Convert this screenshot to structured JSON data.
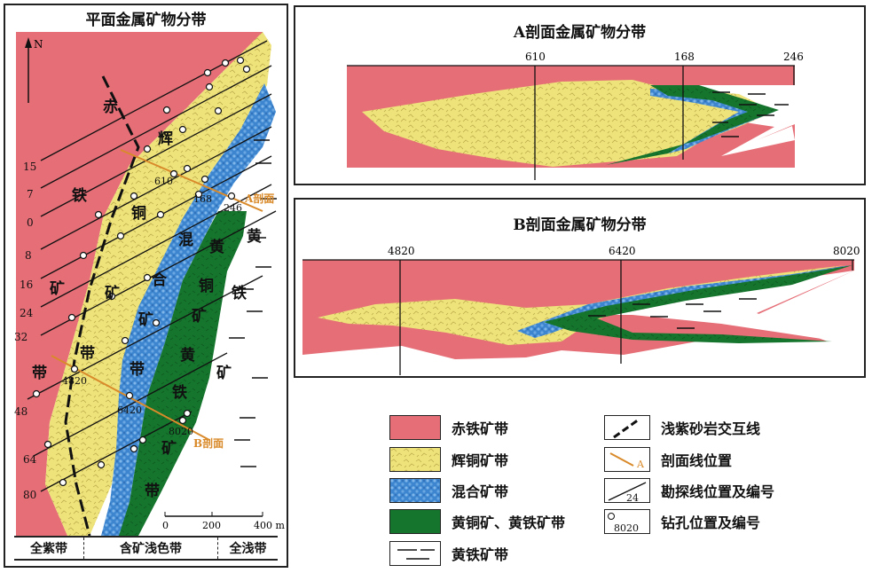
{
  "plan": {
    "title": "平面金属矿物分带",
    "north": "N",
    "zone_labels": {
      "hematite": [
        "赤",
        "铁",
        "矿",
        "带"
      ],
      "chalcocite": [
        "辉",
        "铜",
        "矿",
        "带"
      ],
      "mixed": [
        "混",
        "合",
        "矿",
        "带"
      ],
      "chalcopyrite": [
        "黄",
        "铜",
        "矿",
        "黄",
        "铁",
        "矿",
        "带"
      ],
      "pyrite": [
        "黄",
        "铁",
        "矿"
      ]
    },
    "line_numbers": [
      "15",
      "7",
      "0",
      "8",
      "16",
      "24",
      "32",
      "48",
      "64",
      "80"
    ],
    "drill_labels": [
      "610",
      "168",
      "246",
      "4820",
      "6420",
      "8020"
    ],
    "section_labels": [
      "A剖面",
      "B剖面"
    ],
    "scale_ticks": [
      "0",
      "200",
      "400 m"
    ],
    "bottom_bands": [
      "全紫带",
      "含矿浅色带",
      "全浅带"
    ]
  },
  "sectionA": {
    "title": "A剖面金属矿物分带",
    "holes": [
      "610",
      "168",
      "246"
    ]
  },
  "sectionB": {
    "title": "B剖面金属矿物分带",
    "holes": [
      "4820",
      "6420",
      "8020"
    ]
  },
  "legend": {
    "items": [
      {
        "key": "hematite",
        "label": "赤铁矿带"
      },
      {
        "key": "chalcocite",
        "label": "辉铜矿带"
      },
      {
        "key": "mixed",
        "label": "混合矿带"
      },
      {
        "key": "chalcopyrite",
        "label": "黄铜矿、黄铁矿带"
      },
      {
        "key": "pyrite",
        "label": "黄铁矿带"
      },
      {
        "key": "contact",
        "label": "浅紫砂岩交互线"
      },
      {
        "key": "section",
        "label": "剖面线位置",
        "symbol": "A"
      },
      {
        "key": "line",
        "label": "勘探线位置及编号",
        "symbol": "24"
      },
      {
        "key": "hole",
        "label": "钻孔位置及编号",
        "symbol": "8020"
      }
    ]
  },
  "colors": {
    "hematite": "#e56e77",
    "chalcocite": "#eee27a",
    "mixed": "#3d86cf",
    "chalcopyrite": "#15752d",
    "section_line": "#d98a2a"
  }
}
